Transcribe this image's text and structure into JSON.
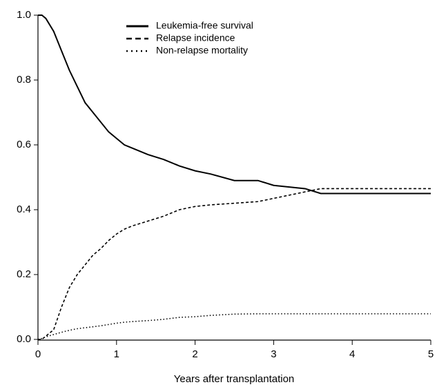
{
  "chart_data": {
    "type": "line",
    "x_label": "Years after transplantation",
    "x": [
      0,
      0.05,
      0.1,
      0.2,
      0.3,
      0.4,
      0.5,
      0.6,
      0.7,
      0.8,
      0.9,
      1.0,
      1.1,
      1.2,
      1.4,
      1.6,
      1.8,
      2.0,
      2.2,
      2.5,
      2.8,
      3.0,
      3.2,
      3.4,
      3.6,
      4.0,
      5.0
    ],
    "series": [
      {
        "name": "Leukemia-free survival",
        "color": "#000000",
        "style": "solid",
        "values": [
          1.0,
          1.0,
          0.99,
          0.95,
          0.89,
          0.83,
          0.78,
          0.73,
          0.7,
          0.67,
          0.64,
          0.62,
          0.6,
          0.59,
          0.57,
          0.555,
          0.535,
          0.52,
          0.51,
          0.49,
          0.49,
          0.475,
          0.47,
          0.465,
          0.45,
          0.45,
          0.45
        ]
      },
      {
        "name": "Relapse incidence",
        "color": "#000000",
        "style": "dashed",
        "values": [
          0,
          0,
          0.01,
          0.03,
          0.1,
          0.16,
          0.2,
          0.23,
          0.26,
          0.28,
          0.305,
          0.325,
          0.34,
          0.35,
          0.365,
          0.38,
          0.4,
          0.41,
          0.415,
          0.42,
          0.425,
          0.435,
          0.445,
          0.455,
          0.465,
          0.465,
          0.465
        ]
      },
      {
        "name": "Non-relapse mortality",
        "color": "#000000",
        "style": "dotted",
        "values": [
          0,
          0.003,
          0.008,
          0.015,
          0.022,
          0.028,
          0.033,
          0.036,
          0.039,
          0.042,
          0.046,
          0.05,
          0.053,
          0.055,
          0.058,
          0.062,
          0.068,
          0.07,
          0.074,
          0.078,
          0.079,
          0.079,
          0.079,
          0.079,
          0.079,
          0.079,
          0.079
        ]
      }
    ],
    "xlim": [
      0,
      5
    ],
    "xticks": [
      0,
      1,
      2,
      3,
      4,
      5
    ],
    "ylim": [
      0,
      1
    ],
    "yticks": [
      {
        "value": 0,
        "label": "0.0"
      },
      0.2,
      0.4,
      0.6,
      0.8,
      {
        "value": 1,
        "label": "1.0"
      }
    ],
    "grid": false
  }
}
